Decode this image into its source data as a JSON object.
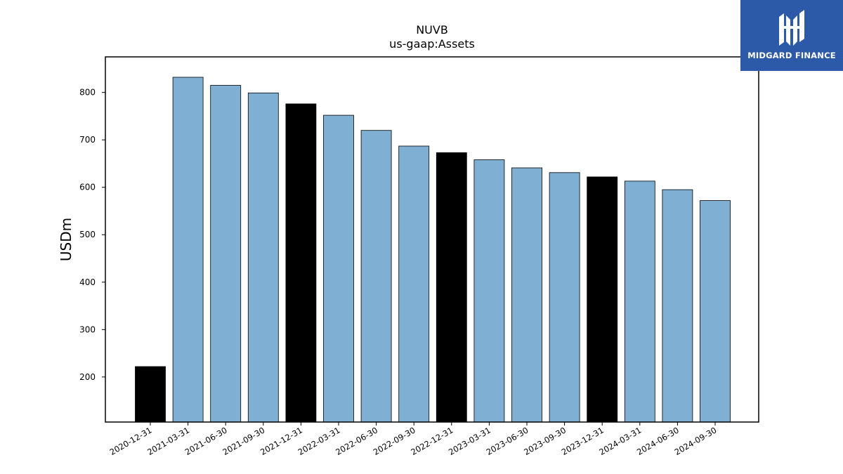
{
  "brand": {
    "name": "MIDGARD FINANCE",
    "logo_icon": "midgard-mh-monogram-icon",
    "background": "#2c5aa8"
  },
  "chart_data": {
    "type": "bar",
    "title": "NUVB",
    "subtitle": "us-gaap:Assets",
    "xlabel": "",
    "ylabel": "USDm",
    "ylim": [
      105,
      875
    ],
    "yticks": [
      200,
      300,
      400,
      500,
      600,
      700,
      800
    ],
    "categories": [
      "2020-12-31",
      "2021-03-31",
      "2021-06-30",
      "2021-09-30",
      "2021-12-31",
      "2022-03-31",
      "2022-06-30",
      "2022-09-30",
      "2022-12-31",
      "2023-03-31",
      "2023-06-30",
      "2023-09-30",
      "2023-12-31",
      "2024-03-31",
      "2024-06-30",
      "2024-09-30"
    ],
    "values": [
      222,
      832,
      815,
      799,
      776,
      752,
      720,
      687,
      673,
      658,
      641,
      631,
      622,
      613,
      595,
      572
    ],
    "highlight": [
      true,
      false,
      false,
      false,
      true,
      false,
      false,
      false,
      true,
      false,
      false,
      false,
      true,
      false,
      false,
      false
    ],
    "colors": {
      "bar": "#7fb0d3",
      "highlight": "#000000",
      "edge": "#000000"
    },
    "grid": false,
    "legend": "none"
  }
}
